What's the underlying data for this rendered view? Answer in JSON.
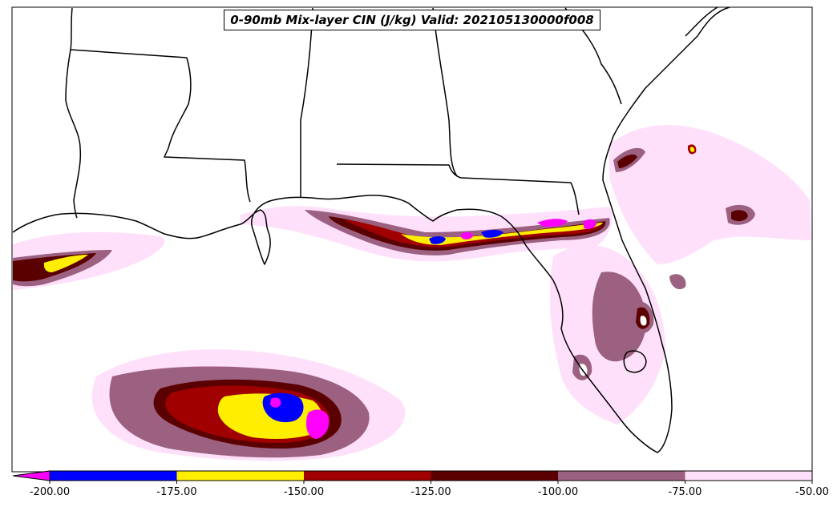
{
  "title": "0-90mb Mix-layer CIN (J/kg) Valid: 202105130000f008",
  "colorbar": {
    "ticks": [
      "-200.00",
      "-175.00",
      "-150.00",
      "-125.00",
      "-100.00",
      "-75.00",
      "-50.00"
    ],
    "under_color": "#ff00ff",
    "bins": [
      {
        "from": -200,
        "to": -175,
        "color": "#0000ff"
      },
      {
        "from": -175,
        "to": -150,
        "color": "#ffee00"
      },
      {
        "from": -150,
        "to": -125,
        "color": "#a00000"
      },
      {
        "from": -125,
        "to": -100,
        "color": "#5a0000"
      },
      {
        "from": -100,
        "to": -75,
        "color": "#9c6080"
      },
      {
        "from": -75,
        "to": -50,
        "color": "#ffe0fa"
      }
    ]
  },
  "colors": {
    "light_pink": "#ffe0fa",
    "mauve": "#9c6080",
    "dark_red": "#5a0000",
    "red": "#a00000",
    "yellow": "#ffee00",
    "blue": "#0000ff",
    "magenta": "#ff00ff"
  }
}
